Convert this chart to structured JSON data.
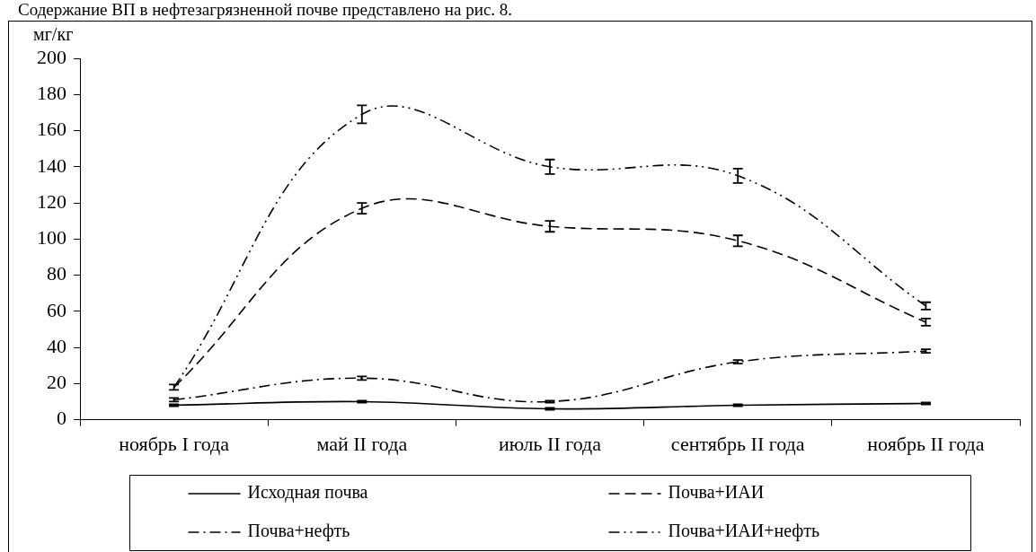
{
  "chart_data": {
    "type": "line",
    "annotations": [
      "Содержание ВП в нефтезагрязненной почве представлено на рис. 8."
    ],
    "ylabel": "мг/кг",
    "categories": [
      "ноябрь I года",
      "май II года",
      "июль II года",
      "сентябрь II года",
      "ноябрь II года"
    ],
    "ylim": [
      0,
      200
    ],
    "yticks": [
      0,
      20,
      40,
      60,
      80,
      100,
      120,
      140,
      160,
      180,
      200
    ],
    "grid": false,
    "legend": "bottom",
    "series": [
      {
        "name": "Исходная почва",
        "color": "#000000",
        "line_style": "solid",
        "values": [
          8,
          10,
          6,
          8,
          9
        ],
        "errors": [
          0.5,
          0.5,
          0.5,
          0.5,
          0.5
        ]
      },
      {
        "name": "Почва+ИАИ",
        "color": "#000000",
        "line_style": "dashed",
        "values": [
          18,
          117,
          107,
          99,
          54
        ],
        "errors": [
          1.5,
          3,
          3,
          3,
          2
        ]
      },
      {
        "name": "Почва+нефть",
        "color": "#000000",
        "line_style": "dashdot",
        "values": [
          11,
          23,
          10,
          32,
          38
        ],
        "errors": [
          1,
          1,
          0.5,
          1,
          1
        ]
      },
      {
        "name": "Почва+ИАИ+нефть",
        "color": "#000000",
        "line_style": "dashdotdot",
        "values": [
          18,
          169,
          140,
          135,
          63
        ],
        "errors": [
          null,
          5,
          4,
          4,
          2
        ]
      }
    ]
  }
}
